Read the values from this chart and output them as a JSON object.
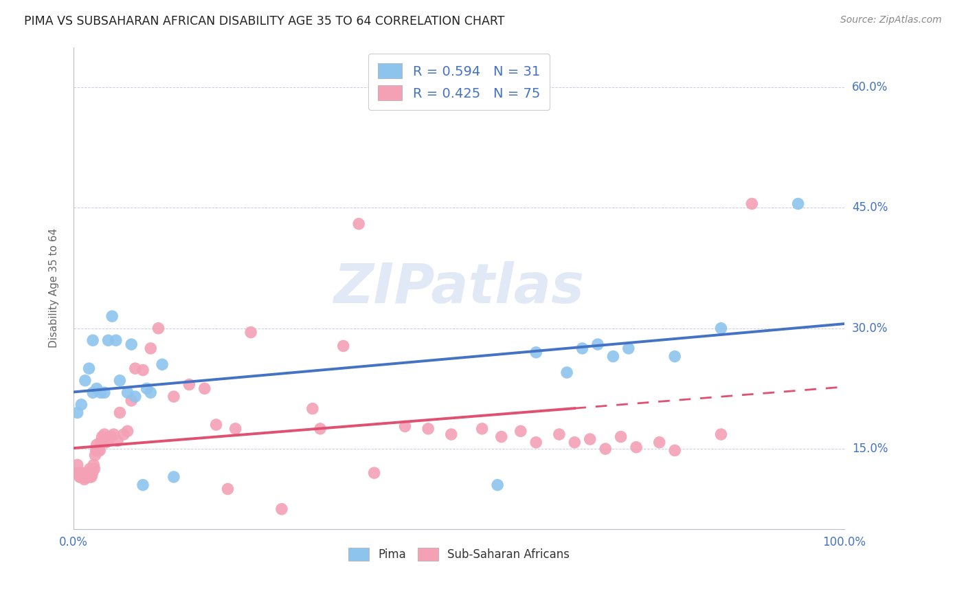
{
  "title": "PIMA VS SUBSAHARAN AFRICAN DISABILITY AGE 35 TO 64 CORRELATION CHART",
  "source": "Source: ZipAtlas.com",
  "ylabel": "Disability Age 35 to 64",
  "xlim": [
    0.0,
    1.0
  ],
  "ylim": [
    0.05,
    0.65
  ],
  "yticks": [
    0.15,
    0.3,
    0.45,
    0.6
  ],
  "ytick_labels": [
    "15.0%",
    "30.0%",
    "45.0%",
    "60.0%"
  ],
  "xtick_labels": [
    "0.0%",
    "100.0%"
  ],
  "pima_R": 0.594,
  "pima_N": 31,
  "ssa_R": 0.425,
  "ssa_N": 75,
  "pima_color": "#8DC4EE",
  "ssa_color": "#F4A0B5",
  "pima_line_color": "#4472C4",
  "ssa_line_color": "#E05070",
  "background_color": "#FFFFFF",
  "grid_color": "#CCCCDD",
  "title_color": "#222222",
  "axis_label_color": "#4472C4",
  "ylabel_color": "#666666",
  "watermark_color": "#C8D8EE",
  "pima_points_x": [
    0.005,
    0.01,
    0.015,
    0.02,
    0.025,
    0.025,
    0.03,
    0.035,
    0.04,
    0.045,
    0.05,
    0.055,
    0.06,
    0.07,
    0.075,
    0.08,
    0.09,
    0.095,
    0.1,
    0.115,
    0.13,
    0.55,
    0.6,
    0.64,
    0.66,
    0.68,
    0.7,
    0.72,
    0.78,
    0.84,
    0.94
  ],
  "pima_points_y": [
    0.195,
    0.205,
    0.235,
    0.25,
    0.285,
    0.22,
    0.225,
    0.22,
    0.22,
    0.285,
    0.315,
    0.285,
    0.235,
    0.22,
    0.28,
    0.215,
    0.105,
    0.225,
    0.22,
    0.255,
    0.115,
    0.105,
    0.27,
    0.245,
    0.275,
    0.28,
    0.265,
    0.275,
    0.265,
    0.3,
    0.455
  ],
  "ssa_points_x": [
    0.005,
    0.005,
    0.007,
    0.008,
    0.009,
    0.01,
    0.011,
    0.012,
    0.013,
    0.014,
    0.015,
    0.016,
    0.017,
    0.018,
    0.019,
    0.02,
    0.021,
    0.022,
    0.023,
    0.024,
    0.025,
    0.026,
    0.027,
    0.028,
    0.029,
    0.03,
    0.031,
    0.032,
    0.034,
    0.035,
    0.037,
    0.04,
    0.042,
    0.045,
    0.048,
    0.052,
    0.057,
    0.06,
    0.065,
    0.07,
    0.075,
    0.08,
    0.09,
    0.1,
    0.11,
    0.13,
    0.15,
    0.17,
    0.185,
    0.2,
    0.21,
    0.23,
    0.27,
    0.31,
    0.32,
    0.35,
    0.37,
    0.39,
    0.43,
    0.46,
    0.49,
    0.53,
    0.555,
    0.58,
    0.6,
    0.63,
    0.65,
    0.67,
    0.69,
    0.71,
    0.73,
    0.76,
    0.78,
    0.84,
    0.88
  ],
  "ssa_points_y": [
    0.12,
    0.13,
    0.12,
    0.115,
    0.115,
    0.118,
    0.12,
    0.118,
    0.115,
    0.112,
    0.115,
    0.118,
    0.12,
    0.115,
    0.118,
    0.115,
    0.125,
    0.12,
    0.115,
    0.118,
    0.122,
    0.13,
    0.125,
    0.142,
    0.148,
    0.155,
    0.148,
    0.148,
    0.148,
    0.158,
    0.165,
    0.168,
    0.158,
    0.16,
    0.165,
    0.168,
    0.16,
    0.195,
    0.168,
    0.172,
    0.21,
    0.25,
    0.248,
    0.275,
    0.3,
    0.215,
    0.23,
    0.225,
    0.18,
    0.1,
    0.175,
    0.295,
    0.075,
    0.2,
    0.175,
    0.278,
    0.43,
    0.12,
    0.178,
    0.175,
    0.168,
    0.175,
    0.165,
    0.172,
    0.158,
    0.168,
    0.158,
    0.162,
    0.15,
    0.165,
    0.152,
    0.158,
    0.148,
    0.168,
    0.455
  ],
  "ssa_line_dash_start": 0.65
}
